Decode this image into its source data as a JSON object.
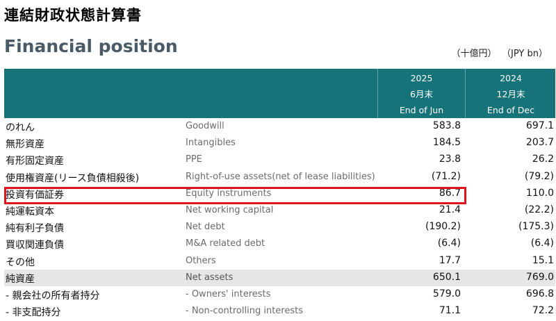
{
  "title_jp": "連結財政状態計算書",
  "title_en": "Financial position",
  "units": {
    "jp": "（十億円）",
    "en": "（JPY bn）"
  },
  "columns": [
    {
      "year": "2025",
      "period_jp": "6月末",
      "period_en": "End of Jun"
    },
    {
      "year": "2024",
      "period_jp": "12月末",
      "period_en": "End of Dec"
    }
  ],
  "rows": [
    {
      "jp": "のれん",
      "en": "Goodwill",
      "v2025": "583.8",
      "v2024": "697.1"
    },
    {
      "jp": "無形資産",
      "en": "Intangibles",
      "v2025": "184.5",
      "v2024": "203.7"
    },
    {
      "jp": "有形固定資産",
      "en": "PPE",
      "v2025": "23.8",
      "v2024": "26.2"
    },
    {
      "jp": "使用権資産(リース負債相殺後)",
      "en": "Right-of-use assets(net of lease liabilities)",
      "v2025": "(71.2)",
      "v2024": "(79.2)"
    },
    {
      "jp": "投資有価証券",
      "en": "Equity instruments",
      "v2025": "86.7",
      "v2024": "110.0"
    },
    {
      "jp": "純運転資本",
      "en": "Net working capital",
      "v2025": "21.4",
      "v2024": "(22.2)"
    },
    {
      "jp": "純有利子負債",
      "en": "Net debt",
      "v2025": "(190.2)",
      "v2024": "(175.3)"
    },
    {
      "jp": "買収関連負債",
      "en": "M&A related debt",
      "v2025": "(6.4)",
      "v2024": "(6.4)"
    },
    {
      "jp": "その他",
      "en": "Others",
      "v2025": "17.7",
      "v2024": "15.1"
    },
    {
      "jp": "純資産",
      "en": "Net assets",
      "v2025": "650.1",
      "v2024": "769.0"
    },
    {
      "jp": "- 親会社の所有者持分",
      "en": "- Owners' interests",
      "v2025": "579.0",
      "v2024": "696.8"
    },
    {
      "jp": "- 非支配持分",
      "en": "- Non-controlling interests",
      "v2025": "71.1",
      "v2024": "72.2"
    }
  ]
}
